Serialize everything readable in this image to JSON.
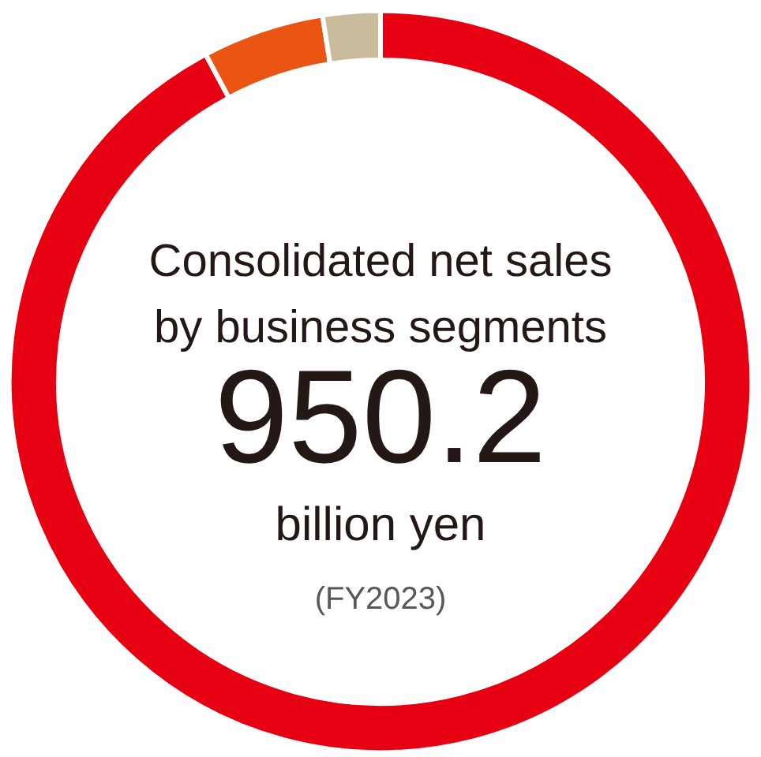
{
  "chart_data": {
    "type": "donut",
    "title": "Consolidated net sales\nby business segments",
    "annotations": [
      "950.2",
      "billion yen",
      "(FY2023)"
    ],
    "categories": [
      null,
      null,
      null
    ],
    "values": [
      92.2,
      5.3,
      2.5
    ],
    "colors": [
      "#e60012",
      "#ea5514",
      "#c9bc9c"
    ]
  }
}
